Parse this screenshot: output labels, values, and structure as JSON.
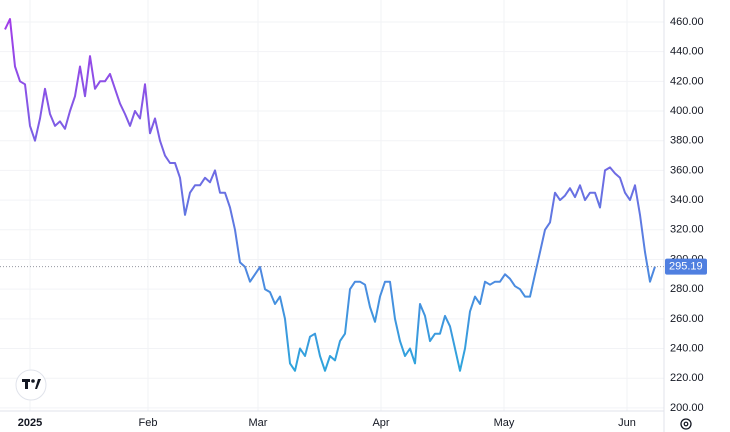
{
  "chart_data": {
    "type": "line",
    "x": [
      0,
      1,
      2,
      3,
      4,
      5,
      6,
      7,
      8,
      9,
      10,
      11,
      12,
      13,
      14,
      15,
      16,
      17,
      18,
      19,
      20,
      21,
      22,
      23,
      24,
      25,
      26,
      27,
      28,
      29,
      30,
      31,
      32,
      33,
      34,
      35,
      36,
      37,
      38,
      39,
      40,
      41,
      42,
      43,
      44,
      45,
      46,
      47,
      48,
      49,
      50,
      51,
      52,
      53,
      54,
      55,
      56,
      57,
      58,
      59,
      60,
      61,
      62,
      63,
      64,
      65,
      66,
      67,
      68,
      69,
      70,
      71,
      72,
      73,
      74,
      75,
      76,
      77,
      78,
      79,
      80,
      81,
      82,
      83,
      84,
      85,
      86,
      87,
      88,
      89,
      90,
      91,
      92,
      93,
      94,
      95,
      96,
      97,
      98,
      99,
      100,
      101,
      102,
      103,
      104,
      105,
      106,
      107,
      108,
      109,
      110,
      111,
      112,
      113,
      114,
      115,
      116,
      117,
      118,
      119,
      120,
      121,
      122,
      123,
      124,
      125,
      126,
      127,
      128,
      129,
      130
    ],
    "values": [
      455,
      462,
      430,
      420,
      418,
      390,
      380,
      395,
      415,
      398,
      390,
      393,
      388,
      400,
      410,
      430,
      410,
      437,
      415,
      420,
      420,
      425,
      415,
      405,
      398,
      390,
      400,
      395,
      418,
      385,
      395,
      380,
      370,
      365,
      365,
      355,
      330,
      345,
      350,
      350,
      355,
      352,
      360,
      345,
      345,
      335,
      320,
      298,
      295,
      285,
      290,
      295,
      280,
      278,
      270,
      275,
      260,
      230,
      225,
      240,
      235,
      248,
      250,
      235,
      225,
      235,
      232,
      245,
      250,
      280,
      285,
      285,
      283,
      268,
      258,
      275,
      285,
      285,
      260,
      245,
      235,
      240,
      230,
      270,
      262,
      245,
      250,
      250,
      262,
      255,
      240,
      225,
      240,
      265,
      275,
      270,
      285,
      283,
      285,
      285,
      290,
      287,
      282,
      280,
      275,
      275,
      290,
      305,
      320,
      325,
      345,
      340,
      343,
      348,
      342,
      350,
      340,
      345,
      345,
      335,
      360,
      362,
      358,
      355,
      345,
      340,
      350,
      330,
      305,
      285,
      295.19
    ],
    "colors": [
      "#a13de9",
      "#2ba8dc"
    ],
    "xlim": [
      0,
      130
    ],
    "ylim": [
      198.6,
      474.8
    ],
    "xticks": [
      {
        "value": 5,
        "label": "2025"
      },
      {
        "value": 28.6,
        "label": "Feb"
      },
      {
        "value": 50.6,
        "label": "Mar"
      },
      {
        "value": 75.2,
        "label": "Apr"
      },
      {
        "value": 99.8,
        "label": "May"
      },
      {
        "value": 124.4,
        "label": "Jun"
      }
    ],
    "yticks": [
      {
        "value": 200,
        "label": "200.00"
      },
      {
        "value": 220,
        "label": "220.00"
      },
      {
        "value": 240,
        "label": "240.00"
      },
      {
        "value": 260,
        "label": "260.00"
      },
      {
        "value": 280,
        "label": "280.00"
      },
      {
        "value": 300,
        "label": "300.00"
      },
      {
        "value": 320,
        "label": "320.00"
      },
      {
        "value": 340,
        "label": "340.00"
      },
      {
        "value": 360,
        "label": "360.00"
      },
      {
        "value": 380,
        "label": "380.00"
      },
      {
        "value": 400,
        "label": "400.00"
      },
      {
        "value": 420,
        "label": "420.00"
      },
      {
        "value": 440,
        "label": "440.00"
      },
      {
        "value": 460,
        "label": "460.00"
      }
    ],
    "grid": true
  }
}
